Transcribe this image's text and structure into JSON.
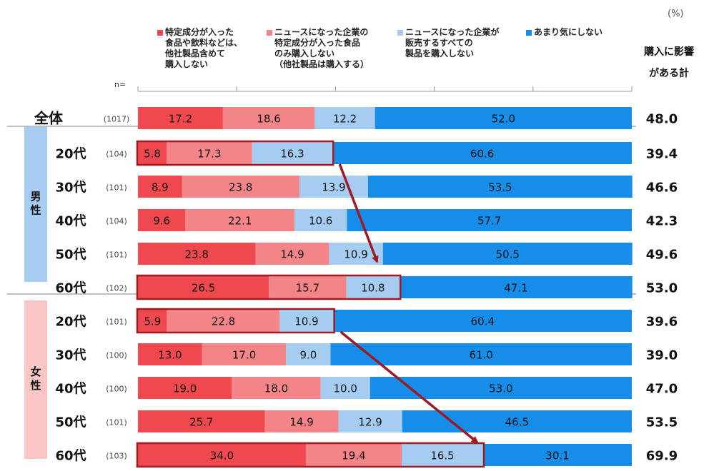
{
  "unit_label": "(%)",
  "n_prefix": "n=",
  "total_header": [
    "購入に影響",
    "がある計"
  ],
  "colors": [
    "#f0484f",
    "#f38487",
    "#a5cdf2",
    "#168de8"
  ],
  "chart_data": {
    "type": "bar",
    "orientation": "horizontal",
    "stacked": true,
    "legend": [
      {
        "name": "特定成分が入った\n食品や飲料などは、\n他社製品含めて\n購入しない",
        "color": "#f0484f"
      },
      {
        "name": "ニュースになった企業の\n特定成分が入った食品\nのみ購入しない\n（他社製品は購入する）",
        "color": "#f38487"
      },
      {
        "name": "ニュースになった企業が\n販売するすべての\n製品を購入しない",
        "color": "#a5cdf2"
      },
      {
        "name": "あまり気にしない",
        "color": "#168de8"
      }
    ],
    "groups": [
      {
        "label": "",
        "rows": [
          {
            "label": "全体",
            "n": "(1017)",
            "values": [
              17.2,
              18.6,
              12.2,
              52.0
            ],
            "total": "48.0"
          }
        ]
      },
      {
        "label": "男性",
        "rows": [
          {
            "label": "20代",
            "n": "(104)",
            "values": [
              5.8,
              17.3,
              16.3,
              60.6
            ],
            "total": "39.4"
          },
          {
            "label": "30代",
            "n": "(101)",
            "values": [
              8.9,
              23.8,
              13.9,
              53.5
            ],
            "total": "46.6"
          },
          {
            "label": "40代",
            "n": "(104)",
            "values": [
              9.6,
              22.1,
              10.6,
              57.7
            ],
            "total": "42.3"
          },
          {
            "label": "50代",
            "n": "(101)",
            "values": [
              23.8,
              14.9,
              10.9,
              50.5
            ],
            "total": "49.6"
          },
          {
            "label": "60代",
            "n": "(102)",
            "values": [
              26.5,
              15.7,
              10.8,
              47.1
            ],
            "total": "53.0"
          }
        ]
      },
      {
        "label": "女性",
        "rows": [
          {
            "label": "20代",
            "n": "(101)",
            "values": [
              5.9,
              22.8,
              10.9,
              60.4
            ],
            "total": "39.6"
          },
          {
            "label": "30代",
            "n": "(100)",
            "values": [
              13.0,
              17.0,
              9.0,
              61.0
            ],
            "total": "39.0"
          },
          {
            "label": "40代",
            "n": "(100)",
            "values": [
              19.0,
              18.0,
              10.0,
              53.0
            ],
            "total": "47.0"
          },
          {
            "label": "50代",
            "n": "(101)",
            "values": [
              25.7,
              14.9,
              12.9,
              46.5
            ],
            "total": "53.5"
          },
          {
            "label": "60代",
            "n": "(103)",
            "values": [
              34.0,
              19.4,
              16.5,
              30.1
            ],
            "total": "69.9"
          }
        ]
      }
    ],
    "xlim": [
      0,
      100
    ],
    "highlights": [
      {
        "group": 1,
        "row": 0,
        "segments": 3
      },
      {
        "group": 1,
        "row": 4,
        "segments": 3
      },
      {
        "group": 2,
        "row": 0,
        "segments": 3
      },
      {
        "group": 2,
        "row": 4,
        "segments": 3
      }
    ],
    "arrows": [
      {
        "from": {
          "group": 1,
          "row": 0
        },
        "to": {
          "group": 1,
          "row": 3
        }
      },
      {
        "from": {
          "group": 2,
          "row": 0
        },
        "to": {
          "group": 2,
          "row": 4
        }
      }
    ]
  }
}
